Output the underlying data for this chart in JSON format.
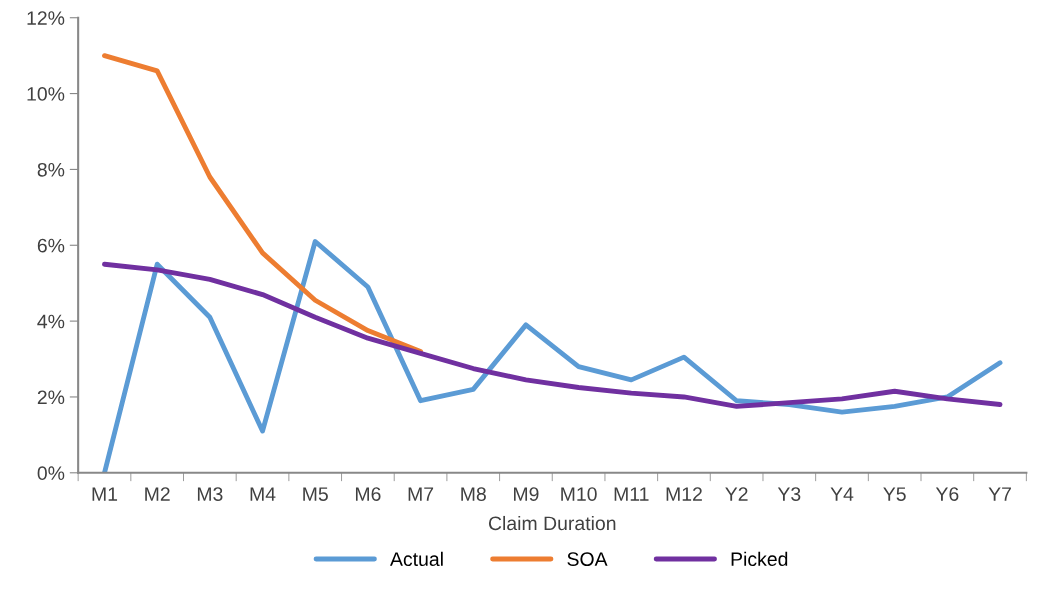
{
  "chart_data": {
    "type": "line",
    "xlabel": "Claim Duration",
    "categories": [
      "M1",
      "M2",
      "M3",
      "M4",
      "M5",
      "M6",
      "M7",
      "M8",
      "M9",
      "M10",
      "M11",
      "M12",
      "Y2",
      "Y3",
      "Y4",
      "Y5",
      "Y6",
      "Y7"
    ],
    "series": [
      {
        "name": "Actual",
        "color": "#5b9bd5",
        "values": [
          0,
          5.5,
          4.1,
          1.1,
          6.1,
          4.9,
          1.9,
          2.2,
          3.9,
          2.8,
          2.45,
          3.05,
          1.9,
          1.8,
          1.6,
          1.75,
          2.0,
          2.9
        ]
      },
      {
        "name": "SOA",
        "color": "#ed7d31",
        "values": [
          11.0,
          10.6,
          7.8,
          5.8,
          4.55,
          3.75,
          3.2,
          null,
          null,
          null,
          null,
          null,
          null,
          null,
          null,
          null,
          null,
          null
        ]
      },
      {
        "name": "Picked",
        "color": "#7030a0",
        "values": [
          5.5,
          5.35,
          5.1,
          4.7,
          4.1,
          3.55,
          3.15,
          2.75,
          2.45,
          2.25,
          2.1,
          2.0,
          1.75,
          1.85,
          1.95,
          2.15,
          1.95,
          1.8
        ]
      }
    ],
    "ylim": [
      0,
      12
    ],
    "yticks": [
      {
        "value": 0,
        "label": "0%"
      },
      {
        "value": 2,
        "label": "2%"
      },
      {
        "value": 4,
        "label": "4%"
      },
      {
        "value": 6,
        "label": "6%"
      },
      {
        "value": 8,
        "label": "8%"
      },
      {
        "value": 10,
        "label": "10%"
      },
      {
        "value": 12,
        "label": "12%"
      }
    ],
    "grid": false,
    "legend": "bottom",
    "marker": "none",
    "line_style": "solid"
  }
}
